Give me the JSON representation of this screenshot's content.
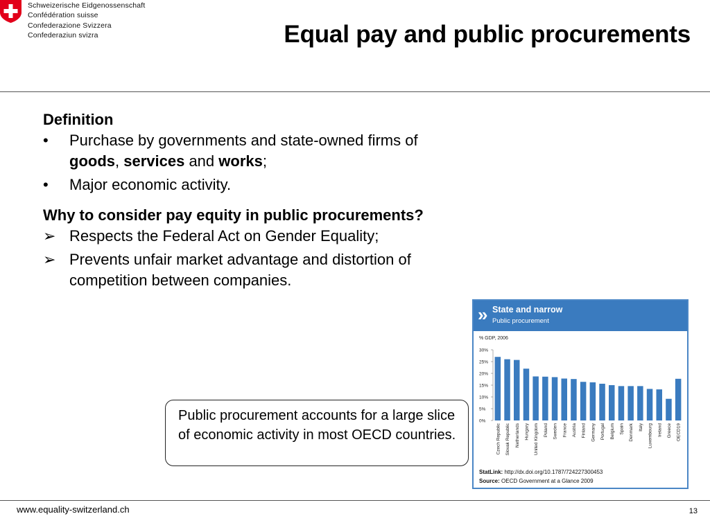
{
  "header": {
    "org_lines": [
      "Schweizerische Eidgenossenschaft",
      "Confédération suisse",
      "Confederazione Svizzera",
      "Confederaziun svizra"
    ],
    "title": "Equal pay and public procurements"
  },
  "content": {
    "definition_heading": "Definition",
    "definition_bullet1": {
      "pre": "Purchase by governments and state-owned firms of ",
      "goods": "goods",
      "sep1": ", ",
      "services": "services",
      "sep2": " and ",
      "works": "works",
      "end": ";"
    },
    "definition_bullet2": "Major economic activity.",
    "why_heading": "Why to consider pay equity in public procurements?",
    "why_bullet1": "Respects the Federal Act on Gender Equality;",
    "why_bullet2": "Prevents unfair market advantage and distortion of competition between companies."
  },
  "callout": {
    "text": "Public procurement accounts for a large slice of economic activity in most OECD countries."
  },
  "chart_panel": {
    "arrows": "»",
    "title": "State and narrow",
    "subtitle": "Public procurement",
    "statlink_label": "StatLink:",
    "statlink_url": "http://dx.doi.org/10.1787/724227300453",
    "source_label": "Source:",
    "source_text": "OECD Government at a Glance 2009",
    "bar_color": "#3a7bbf",
    "header_color": "#3a7bbf"
  },
  "chart_data": {
    "type": "bar",
    "ylabel": "% GDP, 2006",
    "ylim": [
      0,
      30
    ],
    "yticks": [
      "0%",
      "5%",
      "10%",
      "15%",
      "20%",
      "25%",
      "30%"
    ],
    "categories": [
      "Czech Republic",
      "Slovak Republic",
      "Netherlands",
      "Hungary",
      "United Kingdom",
      "Poland",
      "Sweden",
      "France",
      "Austria",
      "Finland",
      "Germany",
      "Portugal",
      "Belgium",
      "Spain",
      "Denmark",
      "Italy",
      "Luxembourg",
      "Ireland",
      "Greece",
      "OECD19"
    ],
    "values": [
      27,
      26,
      25.7,
      22,
      18.7,
      18.6,
      18.4,
      17.8,
      17.6,
      16.4,
      16.2,
      15.6,
      15,
      14.6,
      14.6,
      14.6,
      13.4,
      13.2,
      9.2,
      17.7
    ],
    "grid": false,
    "legend": "none"
  },
  "footer": {
    "url": "www.equality-switzerland.ch",
    "page": "13"
  }
}
